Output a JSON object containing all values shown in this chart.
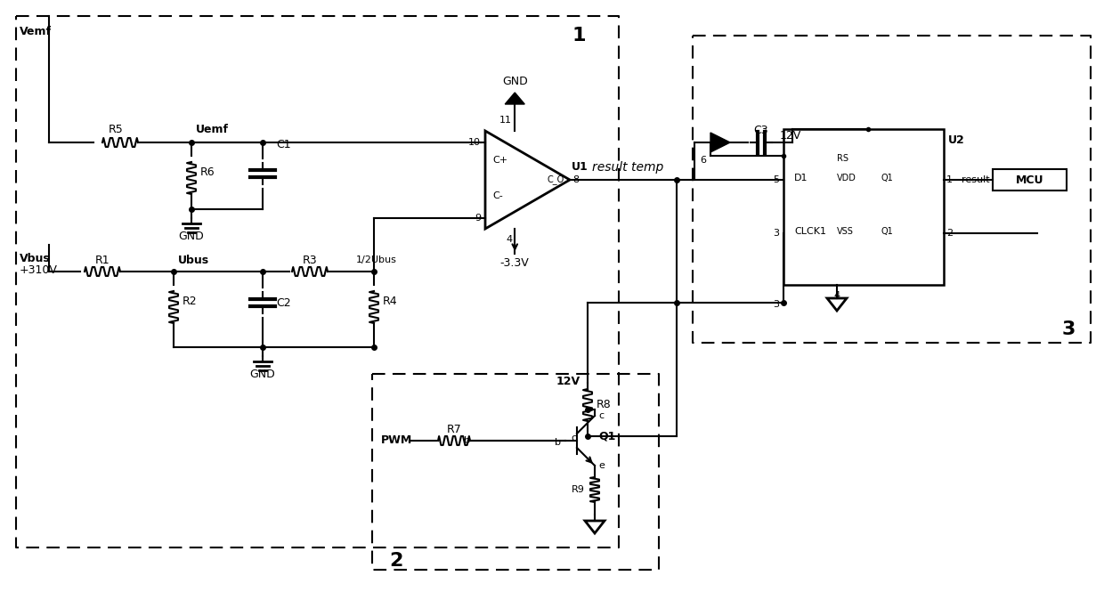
{
  "bg_color": "#ffffff",
  "line_color": "#000000",
  "label1": "1",
  "label2": "2",
  "label3": "3",
  "label_Vemf": "Vemf",
  "label_Vbus": "Vbus",
  "label_310V": "+310V",
  "label_Uemf": "Uemf",
  "label_Ubus": "Ubus",
  "label_halfUbus": "1/2Ubus",
  "label_GND": "GND",
  "label_U1": "U1",
  "label_U2": "U2",
  "label_11": "11",
  "label_10": "10",
  "label_9": "9",
  "label_8": "8",
  "label_4": "4",
  "label_Cplus": "C+",
  "label_Cminus": "C-",
  "label_CO": "C_O",
  "label_GND_top": "GND",
  "label_minus33V": "-3.3V",
  "label_result_temp": "result temp",
  "label_result": "result",
  "label_MCU": "MCU",
  "label_R1": "R1",
  "label_R2": "R2",
  "label_R3": "R3",
  "label_R4": "R4",
  "label_R5": "R5",
  "label_R6": "R6",
  "label_R7": "R7",
  "label_R8": "R8",
  "label_R9": "R9",
  "label_C1": "C1",
  "label_C2": "C2",
  "label_C3": "C3",
  "label_D1": "D1",
  "label_Q1": "Q1",
  "label_PWM": "PWM",
  "label_12V": "12V",
  "label_VDD": "VDD",
  "label_VSS": "VSS",
  "label_CLCK1": "CLCK1",
  "label_b": "b",
  "label_c": "c",
  "label_e": "e",
  "label_RS": "RS"
}
